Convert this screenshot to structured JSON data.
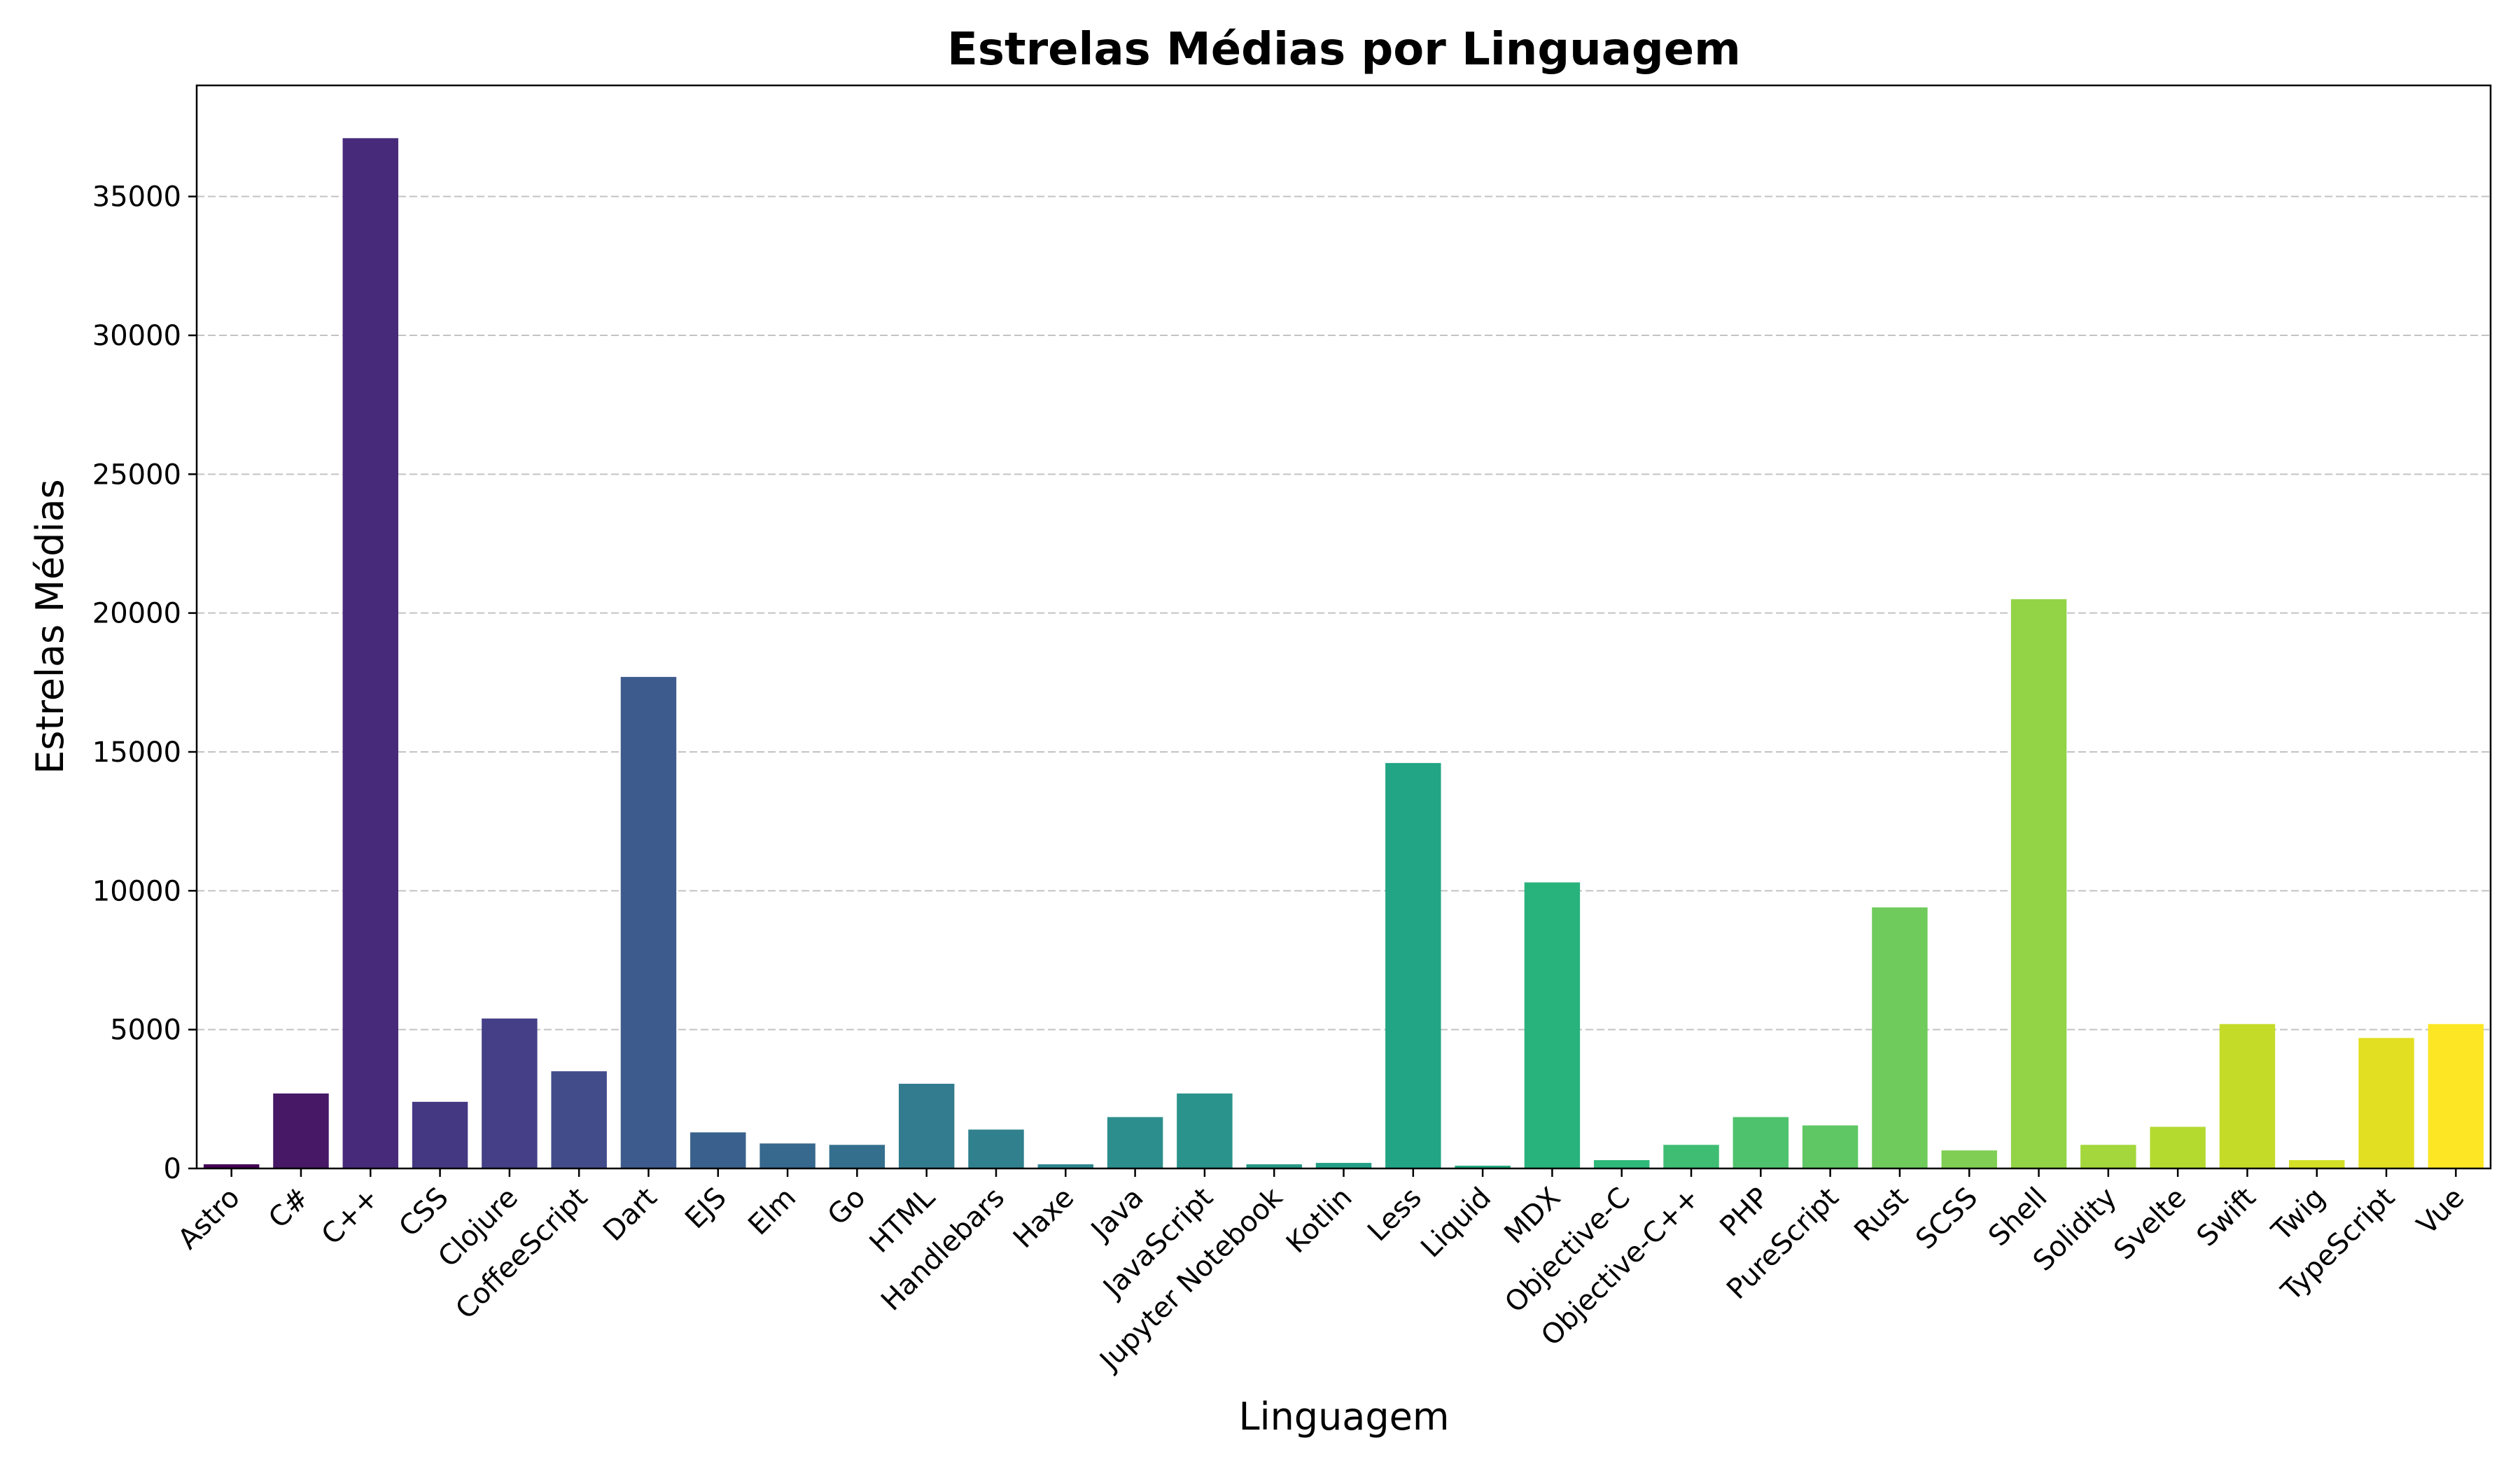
{
  "chart_data": {
    "type": "bar",
    "title": "Estrelas Médias por Linguagem",
    "xlabel": "Linguagem",
    "ylabel": "Estrelas Médias",
    "ylim": [
      0,
      39000
    ],
    "yticks": [
      0,
      5000,
      10000,
      15000,
      20000,
      25000,
      30000,
      35000
    ],
    "grid": {
      "y": true,
      "x": false,
      "style": "dashed"
    },
    "palette": "viridis",
    "categories": [
      "Astro",
      "C#",
      "C++",
      "CSS",
      "Clojure",
      "CoffeeScript",
      "Dart",
      "EJS",
      "Elm",
      "Go",
      "HTML",
      "Handlebars",
      "Haxe",
      "Java",
      "JavaScript",
      "Jupyter Notebook",
      "Kotlin",
      "Less",
      "Liquid",
      "MDX",
      "Objective-C",
      "Objective-C++",
      "PHP",
      "PureScript",
      "Rust",
      "SCSS",
      "Shell",
      "Solidity",
      "Svelte",
      "Swift",
      "Twig",
      "TypeScript",
      "Vue"
    ],
    "values": [
      150,
      2700,
      37100,
      2400,
      5400,
      3500,
      17700,
      1300,
      900,
      850,
      3050,
      1400,
      150,
      1850,
      2700,
      150,
      200,
      14600,
      100,
      10300,
      300,
      850,
      1850,
      1550,
      9400,
      650,
      20500,
      850,
      1500,
      5200,
      300,
      4700,
      5200
    ],
    "colors": [
      "#440154",
      "#461865",
      "#472a7a",
      "#453882",
      "#443f87",
      "#424c8b",
      "#3e5b8d",
      "#3a618d",
      "#37688e",
      "#356f8e",
      "#337b8e",
      "#30808e",
      "#2e878e",
      "#2c8e8d",
      "#2a938c",
      "#279a89",
      "#249f88",
      "#21a585",
      "#22ac80",
      "#28b37c",
      "#2eb87a",
      "#3fbd72",
      "#4ec26c",
      "#5fc764",
      "#6fcb5c",
      "#80cf54",
      "#92d446",
      "#a3d73c",
      "#b4da30",
      "#c4dc28",
      "#d3de26",
      "#e2df23",
      "#fde725"
    ]
  }
}
